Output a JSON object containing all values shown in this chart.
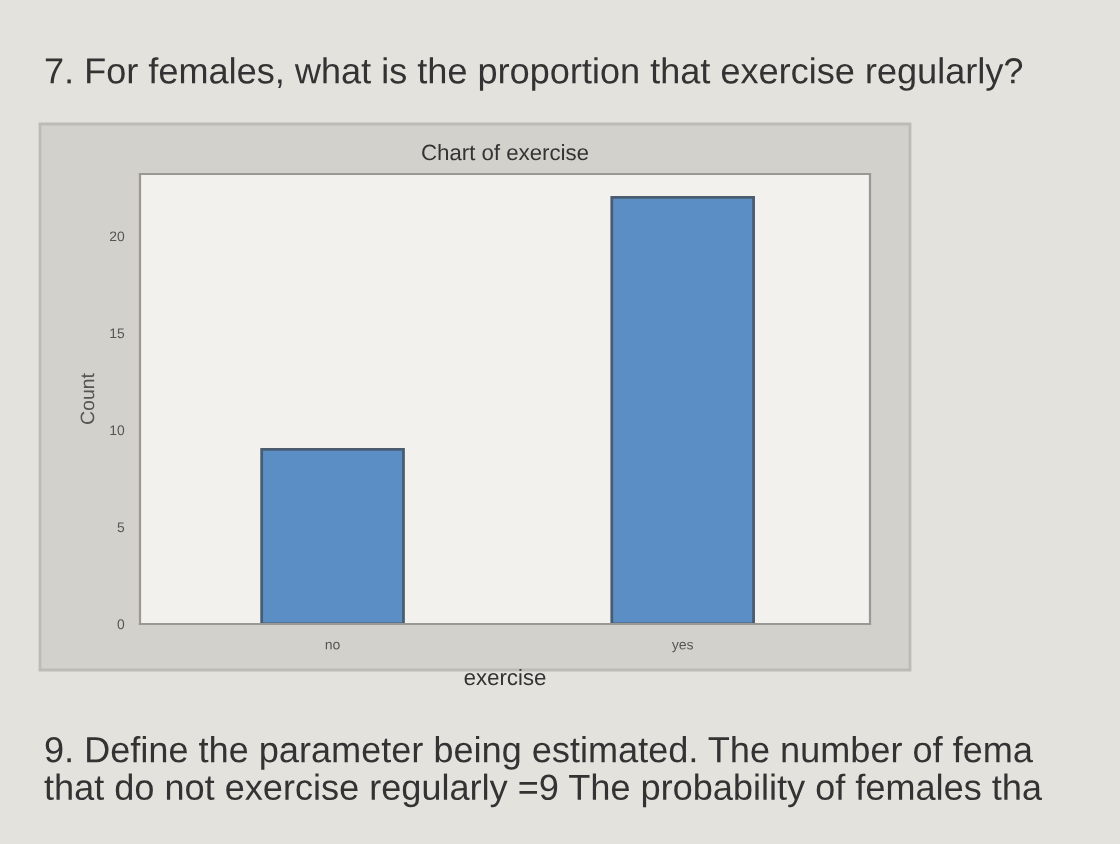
{
  "chart_data": {
    "type": "bar",
    "title": "7. For females, what is the proportion that exercise regularly?",
    "subtitle": "Chart of exercise",
    "xlabel": "exercise",
    "ylabel": "Count",
    "categories": [
      "no",
      "yes"
    ],
    "values": [
      9,
      22
    ],
    "color": "#5b8ec4",
    "ylim": [
      0,
      23.2
    ],
    "yticks": [
      0,
      5,
      10,
      15,
      20
    ],
    "grid": false,
    "annotations": [
      "9. Define the parameter being estimated. The number of fema\nthat do not exercise regularly =9 The probability of females tha"
    ]
  }
}
